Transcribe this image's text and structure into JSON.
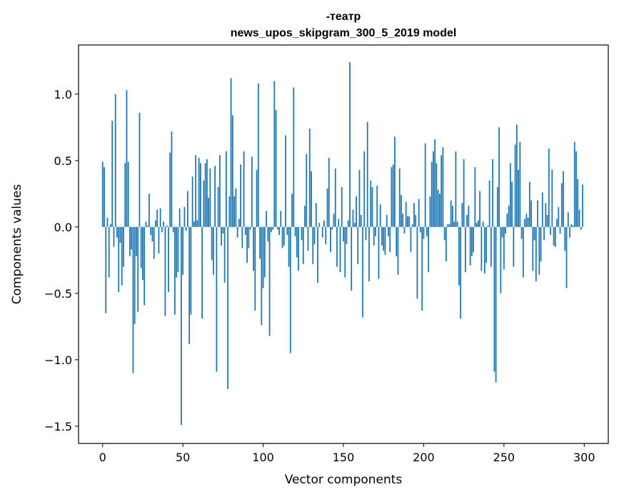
{
  "chart_data": {
    "type": "bar",
    "title_line1": "-театр",
    "title_line2": "news_upos_skipgram_300_5_2019 model",
    "xlabel": "Vector components",
    "ylabel": "Components values",
    "xlim": [
      -15,
      315
    ],
    "ylim": [
      -1.63,
      1.37
    ],
    "xticks": [
      0,
      50,
      100,
      150,
      200,
      250,
      300
    ],
    "yticks": [
      1.0,
      0.5,
      0.0,
      -0.5,
      -1.0,
      -1.5
    ],
    "ytick_labels": [
      "1.0",
      "0.5",
      "0.0",
      "−0.5",
      "−1.0",
      "−1.5"
    ],
    "bar_color": "#1f77b4",
    "grid": false,
    "values": [
      0.49,
      0.45,
      -0.65,
      0.07,
      -0.38,
      0.02,
      0.8,
      -0.15,
      1.0,
      -0.08,
      -0.49,
      -0.12,
      -0.44,
      -0.3,
      0.48,
      1.03,
      0.49,
      -0.22,
      -0.17,
      -1.1,
      -0.73,
      -0.22,
      -0.64,
      0.86,
      -0.31,
      -0.4,
      -0.59,
      0.04,
      0.01,
      0.25,
      -0.06,
      -0.11,
      -0.24,
      0.05,
      0.13,
      -0.2,
      0.14,
      -0.04,
      0.04,
      -0.67,
      0.01,
      -0.49,
      0.56,
      0.72,
      -0.04,
      -0.66,
      -0.38,
      -0.34,
      0.14,
      -1.49,
      -0.36,
      0.15,
      -0.03,
      0.27,
      -0.88,
      -0.66,
      0.38,
      0.04,
      0.54,
      0.05,
      0.52,
      0.48,
      -0.69,
      0.35,
      0.48,
      0.51,
      0.22,
      0.44,
      -0.25,
      -0.36,
      0.46,
      -1.09,
      0.3,
      0.54,
      -0.14,
      -0.05,
      -0.42,
      0.57,
      -1.22,
      0.23,
      1.12,
      0.84,
      0.23,
      0.29,
      -0.08,
      0.06,
      0.47,
      -0.16,
      0.57,
      -0.06,
      -0.27,
      -0.16,
      -0.02,
      0.53,
      -0.33,
      -0.63,
      0.43,
      1.08,
      -0.24,
      -0.74,
      -0.46,
      -0.38,
      0.12,
      -0.11,
      -0.82,
      -0.04,
      -0.02,
      1.1,
      0.88,
      -0.02,
      -0.06,
      0.12,
      -0.16,
      -0.14,
      0.69,
      -0.06,
      -0.3,
      -0.95,
      0.25,
      1.05,
      -0.07,
      -0.23,
      -0.33,
      0.0,
      -0.1,
      -0.28,
      0.16,
      0.55,
      -0.18,
      0.74,
      0.42,
      -0.28,
      -0.13,
      0.18,
      -0.42,
      0.03,
      0.0,
      -0.08,
      0.05,
      -0.13,
      0.29,
      0.52,
      -0.19,
      -0.02,
      0.1,
      0.44,
      -0.3,
      0.06,
      -0.34,
      0.3,
      -0.11,
      -0.38,
      -0.13,
      0.05,
      1.24,
      -0.48,
      0.13,
      0.03,
      0.23,
      -0.28,
      0.43,
      0.09,
      -0.68,
      0.57,
      -0.1,
      0.79,
      -0.41,
      0.35,
      0.3,
      -0.14,
      -0.07,
      0.31,
      -0.39,
      0.17,
      -0.14,
      -0.18,
      -0.21,
      0.09,
      -0.07,
      -0.19,
      0.45,
      0.47,
      0.68,
      -0.22,
      -0.36,
      0.44,
      0.24,
      0.1,
      -0.05,
      0.19,
      0.08,
      0.08,
      -0.19,
      0.02,
      0.18,
      0.09,
      -0.54,
      0.21,
      -0.04,
      -0.63,
      -0.09,
      0.63,
      -0.07,
      -0.34,
      0.23,
      0.49,
      0.57,
      0.66,
      0.48,
      0.28,
      0.25,
      0.54,
      0.6,
      -0.1,
      -0.26,
      0.02,
      0.02,
      0.2,
      0.16,
      0.04,
      0.57,
      0.04,
      -0.44,
      -0.69,
      0.18,
      0.51,
      -0.34,
      0.09,
      0.16,
      -0.29,
      -0.22,
      -0.19,
      0.45,
      0.03,
      0.05,
      0.27,
      -0.33,
      0.04,
      -0.35,
      -0.27,
      0.01,
      0.35,
      -0.3,
      0.51,
      -1.09,
      -1.17,
      0.3,
      0.75,
      -0.5,
      -0.08,
      -0.32,
      -0.05,
      0.1,
      0.16,
      0.48,
      0.34,
      -0.3,
      0.62,
      0.77,
      0.43,
      0.64,
      -0.09,
      -0.38,
      0.06,
      0.1,
      0.07,
      0.34,
      0.2,
      -0.33,
      -0.1,
      -0.41,
      0.2,
      -0.36,
      -0.26,
      0.26,
      -0.1,
      0.18,
      0.09,
      0.59,
      -0.06,
      0.43,
      -0.14,
      -0.15,
      0.06,
      0.15,
      -0.05,
      0.33,
      0.42,
      -0.18,
      -0.46,
      0.11,
      -0.08,
      0.02,
      0.01,
      0.64,
      0.57,
      0.36,
      0.13,
      -0.02,
      0.32
    ]
  }
}
